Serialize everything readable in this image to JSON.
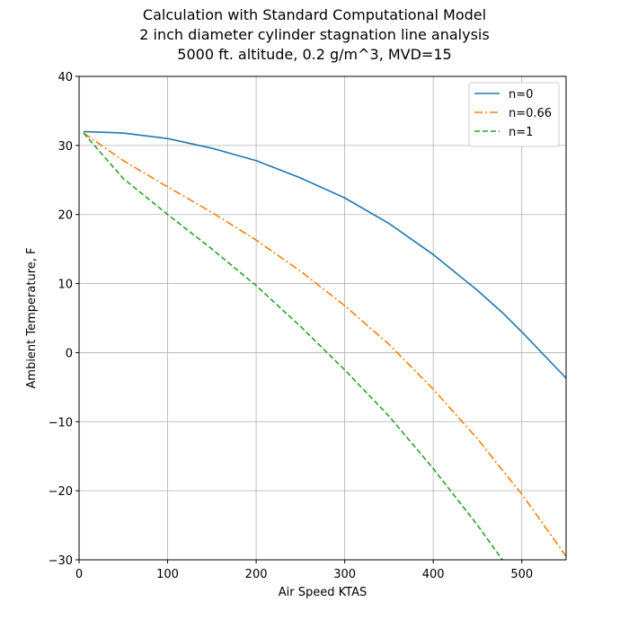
{
  "chart_data": {
    "type": "line",
    "title": [
      "Calculation with Standard Computational Model",
      "2 inch diameter cylinder stagnation line analysis",
      "5000 ft. altitude, 0.2 g/m^3, MVD=15"
    ],
    "xlabel": "Air Speed KTAS",
    "ylabel": "Ambient Temperature, F",
    "x": [
      5,
      50,
      100,
      150,
      200,
      250,
      300,
      350,
      400,
      450,
      478,
      500,
      550
    ],
    "series": [
      {
        "name": "n=0",
        "color": "#1f77b4",
        "dash": "solid",
        "values": [
          32,
          31.8,
          31,
          29.6,
          27.8,
          25.3,
          22.4,
          18.7,
          14.2,
          9,
          5.8,
          3,
          -3.7
        ]
      },
      {
        "name": "n=0.66",
        "color": "#ff7f0e",
        "dash": "dashdot",
        "values": [
          31.8,
          27.8,
          24,
          20.3,
          16.3,
          11.8,
          6.8,
          1.2,
          -5.3,
          -12.5,
          -17,
          -20.5,
          -29.5
        ]
      },
      {
        "name": "n=1",
        "color": "#2ca02c",
        "dash": "dashed",
        "values": [
          31.8,
          25.2,
          20,
          15,
          9.7,
          3.8,
          -2.5,
          -9.2,
          -16.8,
          -25,
          -30,
          null,
          null
        ]
      }
    ],
    "xlim": [
      0,
      550
    ],
    "xticks": [
      0,
      100,
      200,
      300,
      400,
      500
    ],
    "ylim": [
      -30,
      40
    ],
    "yticks": [
      {
        "value": -30,
        "label": "−30"
      },
      {
        "value": -20,
        "label": "−20"
      },
      {
        "value": -10,
        "label": "−10"
      },
      0,
      10,
      20,
      30,
      40
    ],
    "grid": true,
    "legend": "upper right"
  }
}
